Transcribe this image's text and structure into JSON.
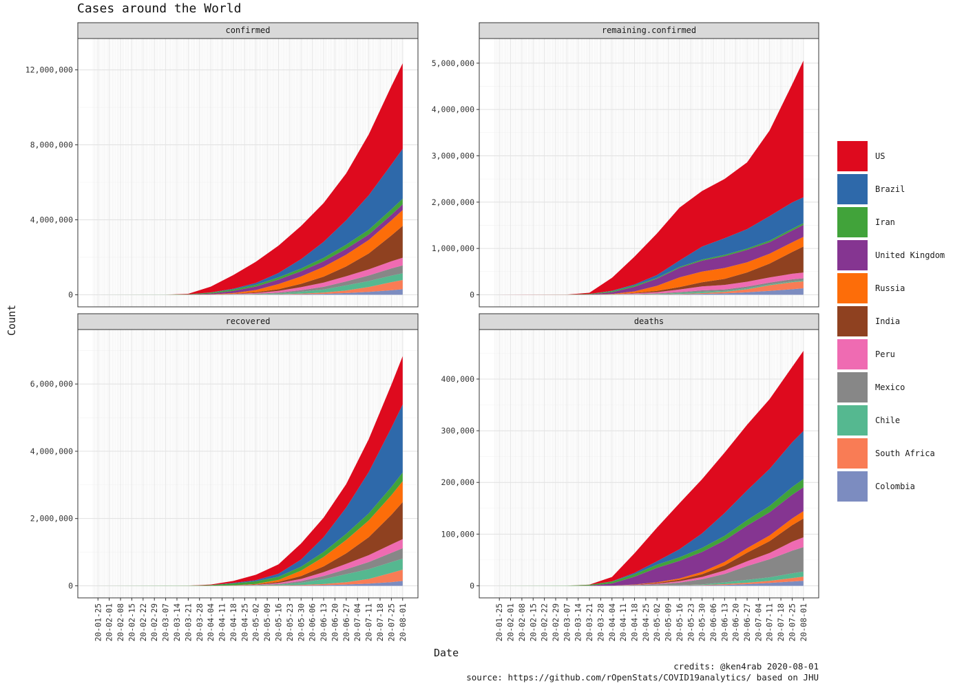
{
  "title": "Cases around the World",
  "axis": {
    "ylabel": "Count",
    "xlabel": "Date"
  },
  "captions": {
    "credits": "credits:  @ken4rab 2020-08-01",
    "source": "source: https://github.com/rOpenStats/COVID19analytics/ based on JHU"
  },
  "chart_data": {
    "type": "area",
    "stacked": true,
    "grid": true,
    "legend_position": "right",
    "x_range": [
      "2020-01-22",
      "2020-08-01"
    ],
    "x_ticks": [
      "20-01-25",
      "20-02-01",
      "20-02-08",
      "20-02-15",
      "20-02-22",
      "20-02-29",
      "20-03-07",
      "20-03-14",
      "20-03-21",
      "20-03-28",
      "20-04-04",
      "20-04-11",
      "20-04-18",
      "20-04-25",
      "20-05-02",
      "20-05-09",
      "20-05-16",
      "20-05-23",
      "20-05-30",
      "20-06-06",
      "20-06-13",
      "20-06-20",
      "20-06-27",
      "20-07-04",
      "20-07-11",
      "20-07-18",
      "20-07-25",
      "20-08-01"
    ],
    "series_order": [
      "Colombia",
      "South Africa",
      "Chile",
      "Mexico",
      "Peru",
      "India",
      "Russia",
      "United Kingdom",
      "Iran",
      "Brazil",
      "US"
    ],
    "legend": [
      {
        "name": "US",
        "color": "#de0a1e"
      },
      {
        "name": "Brazil",
        "color": "#2e69aa"
      },
      {
        "name": "Iran",
        "color": "#41a33a"
      },
      {
        "name": "United Kingdom",
        "color": "#853591"
      },
      {
        "name": "Russia",
        "color": "#fd6d09"
      },
      {
        "name": "India",
        "color": "#8f4120"
      },
      {
        "name": "Peru",
        "color": "#ef6bb2"
      },
      {
        "name": "Mexico",
        "color": "#878787"
      },
      {
        "name": "Chile",
        "color": "#55b890"
      },
      {
        "name": "South Africa",
        "color": "#f97c55"
      },
      {
        "name": "Colombia",
        "color": "#7c8cc0"
      }
    ],
    "x": [
      "2020-03-07",
      "2020-03-21",
      "2020-04-04",
      "2020-04-18",
      "2020-05-02",
      "2020-05-16",
      "2020-05-30",
      "2020-06-13",
      "2020-06-27",
      "2020-07-11",
      "2020-07-25",
      "2020-08-01"
    ],
    "facets": [
      {
        "name": "confirmed",
        "ylim": [
          0,
          13100000
        ],
        "y_ticks": [
          0,
          4000000,
          8000000,
          12000000
        ],
        "y_tick_labels": [
          "0",
          "4,000,000",
          "8,000,000",
          "12,000,000"
        ],
        "series": {
          "Colombia": [
            0,
            200,
            1400,
            3800,
            7700,
            15600,
            29400,
            50900,
            91800,
            154000,
            240000,
            295000
          ],
          "South Africa": [
            0,
            200,
            1600,
            3200,
            6300,
            15500,
            32700,
            65600,
            138000,
            264000,
            434000,
            493000
          ],
          "Chile": [
            0,
            500,
            4500,
            10500,
            18400,
            41400,
            99700,
            167000,
            271000,
            315000,
            347000,
            356000
          ],
          "Mexico": [
            0,
            200,
            1900,
            7500,
            22100,
            45000,
            87500,
            140000,
            212000,
            296000,
            386000,
            425000
          ],
          "Peru": [
            0,
            300,
            1700,
            15600,
            40500,
            88500,
            155000,
            225000,
            275000,
            327000,
            379000,
            408000
          ],
          "India": [
            0,
            300,
            3100,
            14800,
            37300,
            90900,
            182000,
            320000,
            528000,
            850000,
            1380000,
            1700000
          ],
          "Russia": [
            0,
            300,
            4700,
            36800,
            124000,
            273000,
            396000,
            520000,
            628000,
            720000,
            806000,
            845000
          ],
          "United Kingdom": [
            300,
            5000,
            42000,
            115000,
            183000,
            241000,
            275000,
            297000,
            312000,
            289000,
            300000,
            304000
          ],
          "Iran": [
            6500,
            20600,
            55700,
            80900,
            96400,
            118000,
            148000,
            187000,
            220000,
            255000,
            289000,
            304000
          ],
          "Brazil": [
            20,
            1000,
            11000,
            36600,
            97100,
            233000,
            499000,
            851000,
            1300000,
            1840000,
            2390000,
            2660000
          ],
          "US": [
            400,
            25500,
            308000,
            732000,
            1130000,
            1460000,
            1770000,
            2070000,
            2500000,
            3250000,
            4180000,
            4560000
          ]
        }
      },
      {
        "name": "remaining.confirmed",
        "ylim": [
          0,
          5300000
        ],
        "y_ticks": [
          0,
          1000000,
          2000000,
          3000000,
          4000000,
          5000000
        ],
        "y_tick_labels": [
          "0",
          "1,000,000",
          "2,000,000",
          "3,000,000",
          "4,000,000",
          "5,000,000"
        ],
        "series": {
          "Colombia": [
            0,
            200,
            1200,
            2800,
            5500,
            11000,
            20000,
            31000,
            52000,
            85000,
            120000,
            140000
          ],
          "South Africa": [
            0,
            200,
            1400,
            1800,
            3200,
            8000,
            16000,
            32000,
            68000,
            120000,
            150000,
            150000
          ],
          "Chile": [
            0,
            400,
            3800,
            6000,
            8500,
            20000,
            30000,
            20000,
            22000,
            18000,
            18000,
            19000
          ],
          "Mexico": [
            0,
            200,
            1500,
            5500,
            12000,
            20000,
            30000,
            30000,
            35000,
            40000,
            45000,
            46000
          ],
          "Peru": [
            0,
            300,
            1500,
            14000,
            28000,
            55000,
            85000,
            100000,
            105000,
            110000,
            120000,
            125000
          ],
          "India": [
            0,
            250,
            2800,
            11000,
            26000,
            52000,
            90000,
            130000,
            200000,
            300000,
            470000,
            560000
          ],
          "Russia": [
            0,
            300,
            4300,
            33000,
            110000,
            210000,
            230000,
            235000,
            220000,
            215000,
            210000,
            210000
          ],
          "United Kingdom": [
            200,
            4500,
            38000,
            100000,
            155000,
            205000,
            235000,
            255000,
            268000,
            248000,
            255000,
            258000
          ],
          "Iran": [
            4000,
            12000,
            22000,
            27000,
            17000,
            20000,
            24000,
            28000,
            28000,
            32000,
            36000,
            37000
          ],
          "Brazil": [
            20,
            900,
            10000,
            22000,
            60000,
            140000,
            280000,
            360000,
            420000,
            530000,
            570000,
            560000
          ],
          "US": [
            400,
            24000,
            280000,
            600000,
            900000,
            1140000,
            1200000,
            1280000,
            1440000,
            1850000,
            2550000,
            2950000
          ]
        }
      },
      {
        "name": "recovered",
        "ylim": [
          0,
          7300000
        ],
        "y_ticks": [
          0,
          2000000,
          4000000,
          6000000
        ],
        "y_tick_labels": [
          "0",
          "2,000,000",
          "4,000,000",
          "6,000,000"
        ],
        "series": {
          "Colombia": [
            0,
            0,
            100,
            800,
            1800,
            4000,
            8500,
            19000,
            37000,
            64000,
            109000,
            145000
          ],
          "South Africa": [
            0,
            0,
            50,
            1300,
            2900,
            7000,
            16000,
            33000,
            68000,
            140000,
            276000,
            335000
          ],
          "Chile": [
            0,
            0,
            500,
            4000,
            9000,
            20000,
            66000,
            144000,
            242000,
            290000,
            319000,
            328000
          ],
          "Mexico": [
            0,
            0,
            100,
            1500,
            8000,
            21000,
            49000,
            96000,
            146000,
            213000,
            276000,
            307000
          ],
          "Peru": [
            0,
            0,
            100,
            1000,
            11000,
            30000,
            64000,
            114000,
            161000,
            205000,
            251000,
            273000
          ],
          "India": [
            0,
            20,
            300,
            3500,
            10000,
            35000,
            86000,
            170000,
            310000,
            535000,
            880000,
            1100000
          ],
          "Russia": [
            0,
            10,
            300,
            3000,
            13000,
            58000,
            161000,
            280000,
            398000,
            495000,
            583000,
            622000
          ],
          "United Kingdom": [
            0,
            0,
            300,
            400,
            800,
            900,
            1200,
            1300,
            1400,
            1400,
            1400,
            1400
          ],
          "Iran": [
            2400,
            7600,
            19700,
            55000,
            77000,
            95000,
            117000,
            149000,
            182000,
            212000,
            245000,
            259000
          ],
          "Brazil": [
            0,
            0,
            100,
            14000,
            35000,
            89000,
            211000,
            440000,
            780000,
            1230000,
            1760000,
            2020000
          ],
          "US": [
            0,
            200,
            16000,
            60000,
            160000,
            280000,
            480000,
            580000,
            700000,
            980000,
            1280000,
            1440000
          ]
        }
      },
      {
        "name": "deaths",
        "ylim": [
          0,
          475000
        ],
        "y_ticks": [
          0,
          100000,
          200000,
          300000,
          400000
        ],
        "y_tick_labels": [
          "0",
          "100,000",
          "200,000",
          "300,000",
          "400,000"
        ],
        "series": {
          "Colombia": [
            0,
            0,
            20,
            160,
            340,
            650,
            950,
            1700,
            3200,
            5600,
            8300,
            9800
          ],
          "South Africa": [
            0,
            0,
            10,
            50,
            100,
            260,
            700,
            1500,
            2700,
            3900,
            6700,
            8000
          ],
          "Chile": [
            0,
            0,
            20,
            120,
            260,
            420,
            1050,
            3400,
            5700,
            6900,
            9200,
            9500
          ],
          "Mexico": [
            0,
            0,
            100,
            1000,
            2300,
            5000,
            10000,
            16400,
            26600,
            35000,
            43700,
            47500
          ],
          "Peru": [
            0,
            0,
            60,
            450,
            1100,
            2500,
            4400,
            6800,
            9300,
            12000,
            17500,
            19000
          ],
          "India": [
            0,
            0,
            100,
            500,
            1300,
            2900,
            5300,
            9500,
            16500,
            23000,
            32000,
            36500
          ],
          "Russia": [
            0,
            0,
            30,
            300,
            1300,
            2600,
            4600,
            6800,
            8900,
            11000,
            13000,
            14000
          ],
          "United Kingdom": [
            0,
            300,
            4300,
            15000,
            28000,
            34000,
            38500,
            41700,
            43600,
            44800,
            45800,
            46200
          ],
          "Iran": [
            150,
            1600,
            3600,
            5000,
            6100,
            6900,
            7800,
            8800,
            10500,
            12500,
            14900,
            16000
          ],
          "Brazil": [
            0,
            0,
            400,
            2500,
            6800,
            15600,
            28000,
            44000,
            57600,
            71500,
            86500,
            93000
          ],
          "US": [
            10,
            300,
            8400,
            38000,
            65000,
            89000,
            105000,
            117000,
            127000,
            135000,
            146000,
            155000
          ]
        }
      }
    ]
  }
}
